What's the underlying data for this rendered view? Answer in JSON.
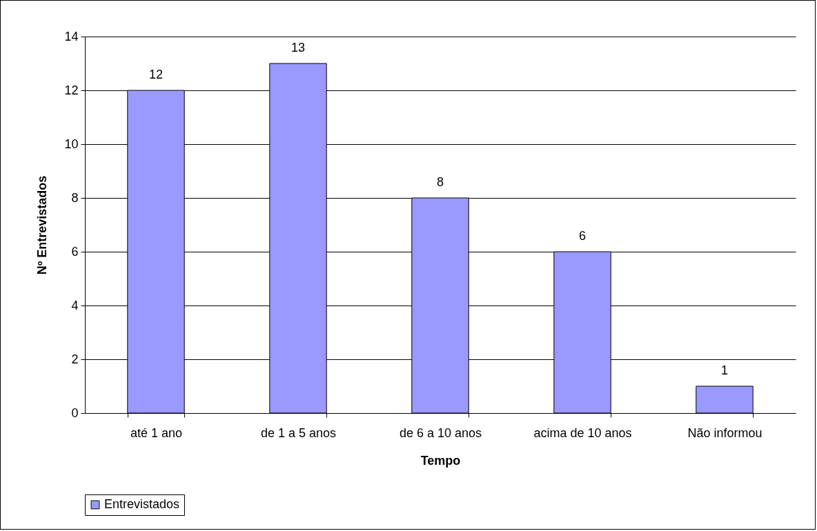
{
  "chart_data": {
    "type": "bar",
    "xlabel": "Tempo",
    "ylabel": "Nº Entrevistados",
    "categories": [
      "até 1 ano",
      "de 1 a 5 anos",
      "de 6 a 10 anos",
      "acima de 10 anos",
      "Não informou"
    ],
    "series": [
      {
        "name": "Entrevistados",
        "color": "#9999ff",
        "values": [
          12,
          13,
          8,
          6,
          1
        ]
      }
    ],
    "ylim": [
      0,
      14
    ],
    "yticks": [
      0,
      2,
      4,
      6,
      8,
      10,
      12,
      14
    ],
    "grid": "y",
    "legend": "bottom",
    "data_labels": true
  }
}
